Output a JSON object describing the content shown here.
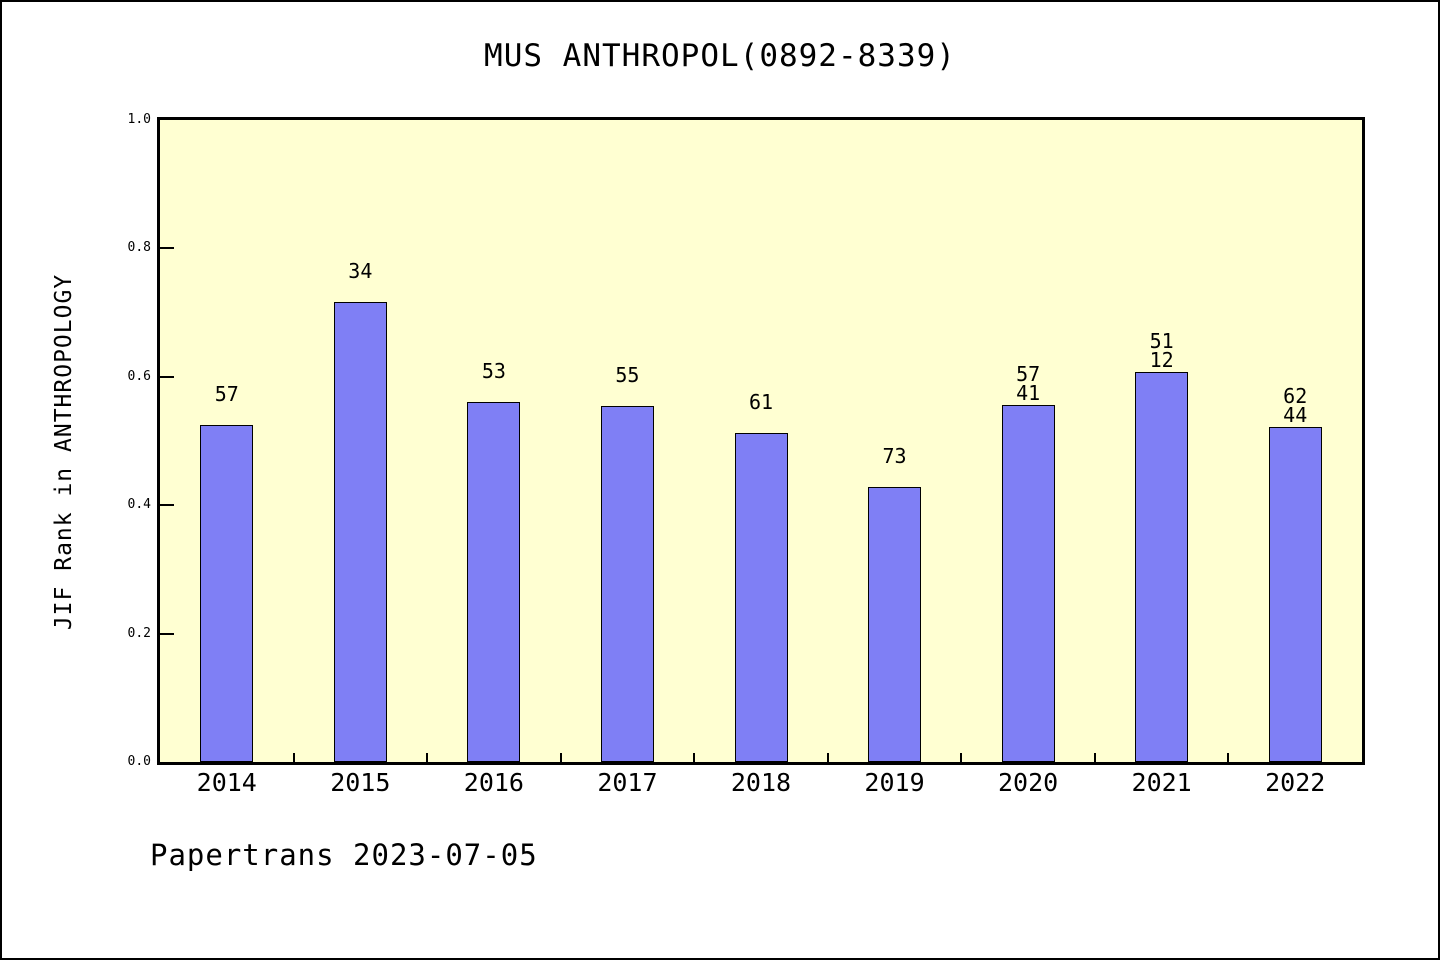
{
  "chart": {
    "title": "MUS ANTHROPOL(0892-8339)",
    "ylabel": "JIF Rank in ANTHROPOLOGY",
    "footer": "Papertrans 2023-07-05"
  },
  "chart_data": {
    "type": "bar",
    "title": "MUS ANTHROPOL(0892-8339)",
    "xlabel": "",
    "ylabel": "JIF Rank in ANTHROPOLOGY",
    "categories": [
      "2014",
      "2015",
      "2016",
      "2017",
      "2018",
      "2019",
      "2020",
      "2021",
      "2022"
    ],
    "values": [
      0.525,
      0.717,
      0.561,
      0.554,
      0.512,
      0.428,
      0.556,
      0.607,
      0.522
    ],
    "bar_labels": [
      [
        "57"
      ],
      [
        "34"
      ],
      [
        "53"
      ],
      [
        "55"
      ],
      [
        "61"
      ],
      [
        "73"
      ],
      [
        "57",
        "41"
      ],
      [
        "51",
        "12"
      ],
      [
        "62",
        "44"
      ]
    ],
    "ylim": [
      0.0,
      1.0
    ],
    "yticks": [
      0.0,
      0.2,
      0.4,
      0.6,
      0.8,
      1.0
    ],
    "ytick_labels": [
      "0.0",
      "0.2",
      "0.4",
      "0.6",
      "0.8",
      "1.0"
    ],
    "grid": false,
    "legend_position": "none",
    "footer": "Papertrans 2023-07-05",
    "colors": {
      "bar_fill": "#7F7FF5",
      "bar_edge": "#000000",
      "plot_bg": "#FFFFD2",
      "page_bg": "#FFFFFF",
      "text": "#000000"
    }
  }
}
